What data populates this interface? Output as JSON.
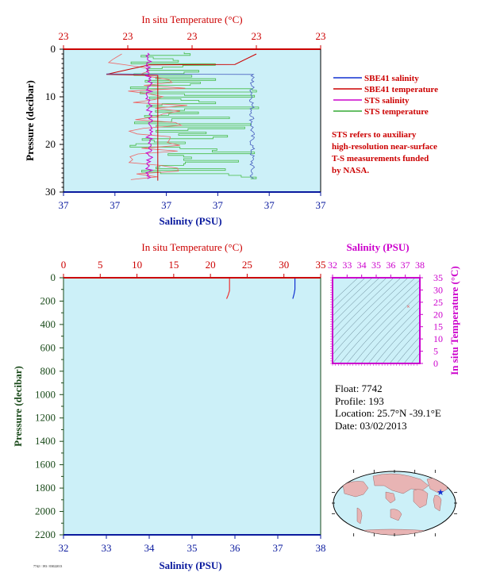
{
  "chart_data": [
    {
      "type": "line",
      "title": "",
      "top_axis_label": "In situ Temperature (°C)",
      "xlabel": "Salinity (PSU)",
      "ylabel": "Pressure (decibar)",
      "top_tick_labels": [
        "23",
        "23",
        "23",
        "23",
        "23"
      ],
      "bottom_tick_labels": [
        "37",
        "37",
        "37",
        "37",
        "37",
        "37"
      ],
      "y_ticks": [
        0,
        10,
        20,
        30
      ],
      "ylim": [
        30,
        0
      ],
      "colors": {
        "sbe_salinity": "#1030d0",
        "sbe_temperature": "#cc0000",
        "sts_salinity": "#cc00cc",
        "sts_temperature": "#33aa33"
      },
      "legend": [
        "SBE41 salinity",
        "SBE41 temperature",
        "STS salinity",
        "STS temperature"
      ],
      "legend_position": "right",
      "annotation": [
        "STS refers to auxiliary",
        "high-resolution near-surface",
        "T-S measurements funded",
        "by NASA."
      ],
      "series": [
        {
          "name": "SBE41 salinity",
          "x": [
            37.02,
            37.03,
            37.03,
            37.03
          ],
          "y": [
            5.2,
            5.3,
            5.3,
            27.5
          ]
        },
        {
          "name": "SBE41 temperature",
          "x": [
            23.35,
            23.3,
            23.1,
            23.0,
            23.12,
            23.12
          ],
          "y": [
            1.0,
            3.2,
            3.3,
            5.3,
            5.5,
            27.6
          ]
        },
        {
          "name": "STS salinity",
          "x": [
            37.0,
            37.0,
            37.0
          ],
          "y": [
            0.8,
            10,
            27.5
          ]
        },
        {
          "name": "STS temperature",
          "x": [
            23.2,
            23.2,
            23.2
          ],
          "y": [
            0.6,
            10,
            27.5
          ]
        }
      ]
    },
    {
      "type": "line",
      "title": "",
      "top_axis_label": "In situ Temperature (°C)",
      "xlabel": "Salinity (PSU)",
      "ylabel": "Pressure (decibar)",
      "xlim_temperature": [
        0,
        35
      ],
      "xlim_salinity": [
        32,
        38
      ],
      "ylim": [
        2200,
        0
      ],
      "top_ticks": [
        0,
        5,
        10,
        15,
        20,
        25,
        30,
        35
      ],
      "bottom_ticks": [
        32,
        33,
        34,
        35,
        36,
        37,
        38
      ],
      "y_ticks": [
        0,
        200,
        400,
        600,
        800,
        1000,
        1200,
        1400,
        1600,
        1800,
        2000,
        2200
      ],
      "series": [
        {
          "name": "SBE41 temperature",
          "x": [
            22.6,
            22.6,
            22.4,
            22.2
          ],
          "y": [
            0,
            110,
            150,
            180
          ]
        },
        {
          "name": "SBE41 salinity",
          "x": [
            37.4,
            37.4,
            37.38,
            37.35
          ],
          "y": [
            0,
            100,
            140,
            180
          ]
        }
      ]
    },
    {
      "type": "scatter",
      "title": "",
      "xlabel": "Salinity (PSU)",
      "ylabel": "In situ Temperature (°C)",
      "xlim": [
        32,
        38
      ],
      "ylim": [
        0,
        35
      ],
      "x_ticks": [
        32,
        33,
        34,
        35,
        36,
        37,
        38
      ],
      "y_ticks": [
        0,
        5,
        10,
        15,
        20,
        25,
        30,
        35
      ],
      "points": [
        {
          "x": 37.2,
          "y": 23.3
        }
      ]
    }
  ],
  "float_info": {
    "float": "Float:  7742",
    "profile": "Profile:  193",
    "location": "Location:  25.7°N  -39.1°E",
    "date": "Date:  03/02/2013"
  },
  "map": {
    "marker_lat": 25.7,
    "marker_lon": -39.1
  },
  "footer_text": "7742 / 193 / 03022013"
}
